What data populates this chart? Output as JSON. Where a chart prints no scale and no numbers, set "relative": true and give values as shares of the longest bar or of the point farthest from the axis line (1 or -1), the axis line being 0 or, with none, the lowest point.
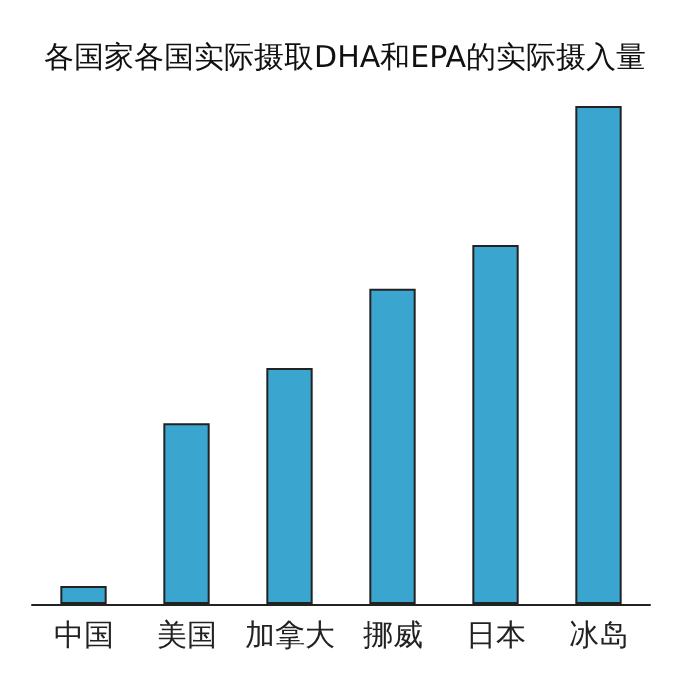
{
  "chart_data": {
    "type": "bar",
    "title": "各国家各国实际摄取DHA和EPA的实际摄入量",
    "categories": [
      "中国",
      "美国",
      "加拿大",
      "挪威",
      "日本",
      "冰岛"
    ],
    "values": [
      0.036,
      0.363,
      0.474,
      0.633,
      0.721,
      1
    ],
    "color": "#3aa6d0",
    "relative": true
  }
}
